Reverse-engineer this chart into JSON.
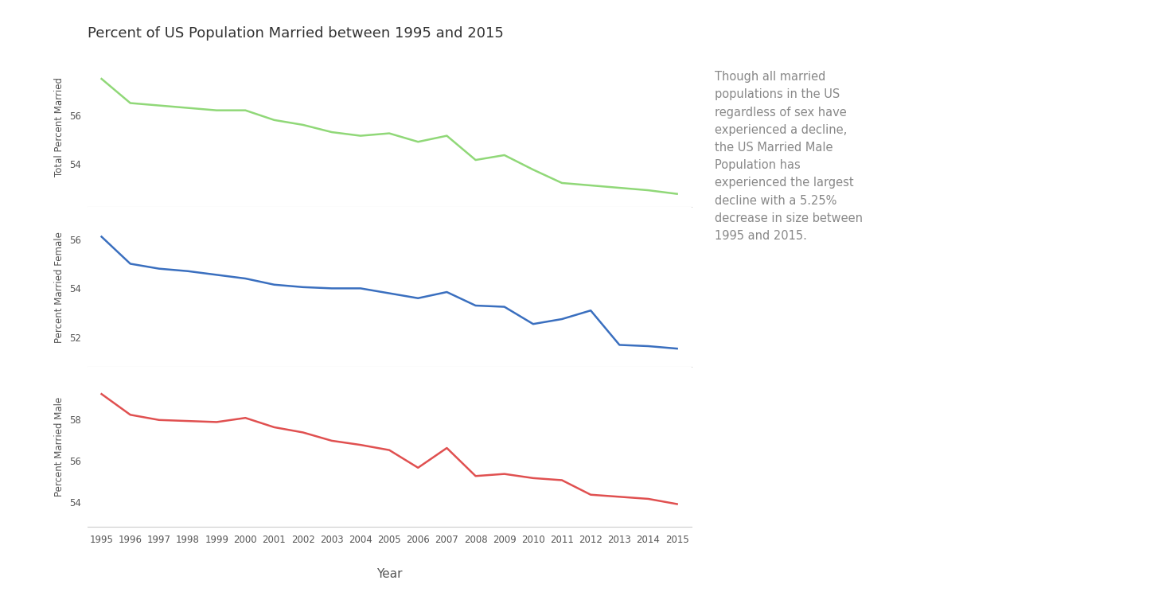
{
  "title": "Percent of US Population Married between 1995 and 2015",
  "xlabel": "Year",
  "years": [
    1995,
    1996,
    1997,
    1998,
    1999,
    2000,
    2001,
    2002,
    2003,
    2004,
    2005,
    2006,
    2007,
    2008,
    2009,
    2010,
    2011,
    2012,
    2013,
    2014,
    2015
  ],
  "total": [
    57.5,
    56.5,
    56.4,
    56.3,
    56.2,
    56.2,
    55.8,
    55.6,
    55.3,
    55.15,
    55.25,
    54.9,
    55.15,
    54.15,
    54.35,
    53.75,
    53.2,
    53.1,
    53.0,
    52.9,
    52.75
  ],
  "female": [
    56.1,
    55.0,
    54.8,
    54.7,
    54.55,
    54.4,
    54.15,
    54.05,
    54.0,
    54.0,
    53.8,
    53.6,
    53.85,
    53.3,
    53.25,
    52.55,
    52.75,
    53.1,
    51.7,
    51.65,
    51.55
  ],
  "male": [
    59.2,
    58.2,
    57.95,
    57.9,
    57.85,
    58.05,
    57.6,
    57.35,
    56.95,
    56.75,
    56.5,
    55.65,
    56.6,
    55.25,
    55.35,
    55.15,
    55.05,
    54.35,
    54.25,
    54.15,
    53.9
  ],
  "color_total": "#90d878",
  "color_female": "#3a6fbf",
  "color_male": "#e05050",
  "annotation_text": "Though all married\npopulations in the US\nregardless of sex have\nexperienced a decline,\nthe US Married Male\nPopulation has\nexperienced the largest\ndecline with a 5.25%\ndecrease in size between\n1995 and 2015.",
  "annotation_color": "#888888",
  "background_color": "#ffffff",
  "spine_color": "#cccccc",
  "title_fontsize": 13,
  "axis_label_fontsize": 8.5,
  "tick_fontsize": 8.5,
  "annotation_fontsize": 10.5,
  "line_width": 1.8
}
